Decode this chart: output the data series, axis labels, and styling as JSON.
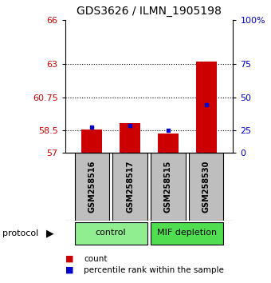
{
  "title": "GDS3626 / ILMN_1905198",
  "samples": [
    "GSM258516",
    "GSM258517",
    "GSM258515",
    "GSM258530"
  ],
  "groups": [
    {
      "label": "control",
      "color": "#90EE90",
      "indices": [
        0,
        1
      ]
    },
    {
      "label": "MIF depletion",
      "color": "#50DD50",
      "indices": [
        2,
        3
      ]
    }
  ],
  "bar_values": [
    58.6,
    59.0,
    58.3,
    63.2
  ],
  "dot_values": [
    58.72,
    58.87,
    58.52,
    60.28
  ],
  "ylim": [
    57,
    66
  ],
  "yticks_left": [
    57,
    58.5,
    60.75,
    63,
    66
  ],
  "yticks_left_labels": [
    "57",
    "58.5",
    "60.75",
    "63",
    "66"
  ],
  "yticks_right_vals": [
    57,
    58.5,
    60.75,
    63,
    66
  ],
  "yticks_right_labels": [
    "0",
    "25",
    "50",
    "75",
    "100%"
  ],
  "bar_color": "#CC0000",
  "dot_color": "#0000CC",
  "dotted_line_y": [
    58.5,
    60.75,
    63
  ],
  "legend_items": [
    {
      "color": "#CC0000",
      "label": "count"
    },
    {
      "color": "#0000CC",
      "label": "percentile rank within the sample"
    }
  ],
  "protocol_label": "protocol",
  "sample_area_color": "#BEBEBE",
  "bar_width": 0.55
}
